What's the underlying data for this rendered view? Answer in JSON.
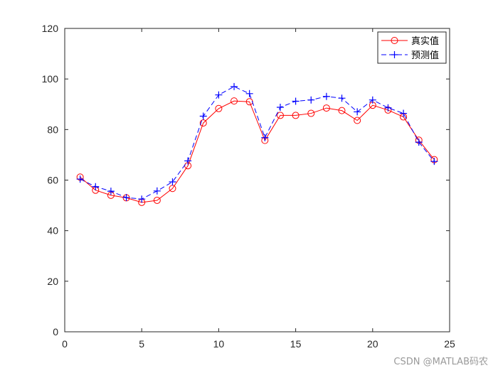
{
  "chart_data": {
    "type": "line",
    "title": "",
    "xlabel": "",
    "ylabel": "",
    "xlim": [
      0,
      25
    ],
    "ylim": [
      0,
      120
    ],
    "xticks": [
      0,
      5,
      10,
      15,
      20,
      25
    ],
    "yticks": [
      0,
      20,
      40,
      60,
      80,
      100,
      120
    ],
    "grid": false,
    "legend_position": "top-right",
    "x": [
      1,
      2,
      3,
      4,
      5,
      6,
      7,
      8,
      9,
      10,
      11,
      12,
      13,
      14,
      15,
      16,
      17,
      18,
      19,
      20,
      21,
      22,
      23,
      24
    ],
    "series": [
      {
        "name": "真实值",
        "color": "#ff0000",
        "line_style": "solid",
        "marker": "circle",
        "values": [
          61.2,
          56.0,
          54.0,
          53.0,
          51.2,
          52.0,
          56.7,
          65.7,
          82.6,
          88.3,
          91.3,
          91.0,
          75.7,
          85.6,
          85.6,
          86.4,
          88.5,
          87.5,
          83.6,
          89.6,
          87.7,
          85.0,
          75.8,
          68.1
        ]
      },
      {
        "name": "预测值",
        "color": "#0000ff",
        "line_style": "dashed",
        "marker": "plus",
        "values": [
          60.4,
          57.4,
          55.6,
          53.1,
          52.5,
          55.7,
          59.3,
          67.6,
          85.3,
          93.7,
          97.0,
          94.2,
          76.8,
          88.8,
          91.2,
          91.7,
          93.1,
          92.4,
          87.0,
          91.7,
          88.6,
          86.4,
          75.0,
          67.4
        ]
      }
    ]
  },
  "watermark": "CSDN @MATLAB码农"
}
